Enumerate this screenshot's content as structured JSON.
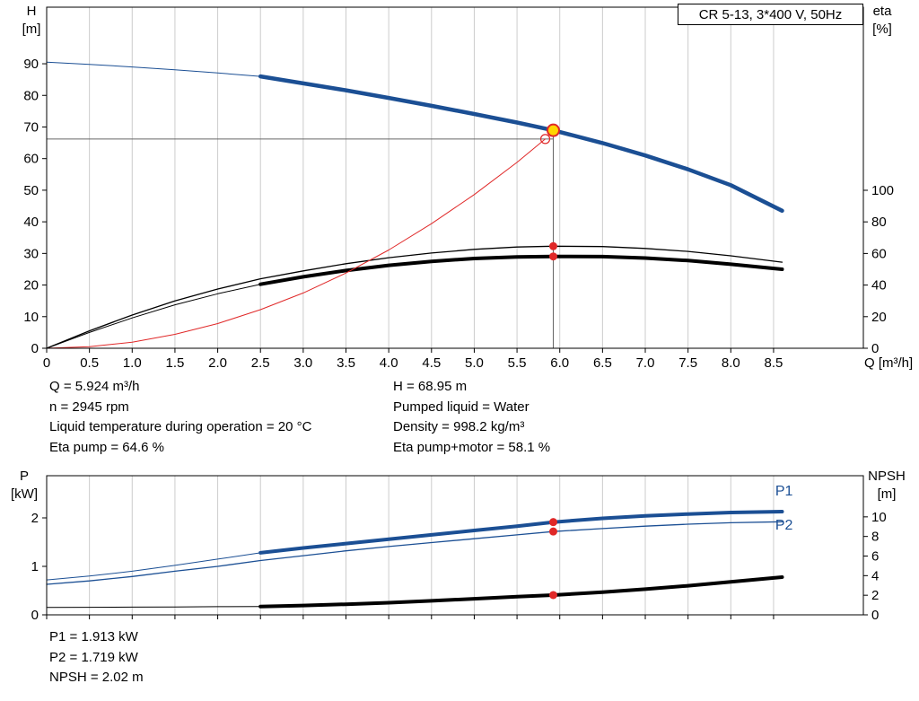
{
  "title_box": {
    "label": "CR 5-13, 3*400 V, 50Hz"
  },
  "axis_labels": {
    "h_1": "H",
    "h_2": "[m]",
    "eta_1": "eta",
    "eta_2": "[%]",
    "q_unit": "Q [m³/h]",
    "p_1": "P",
    "p_2": "[kW]",
    "npsh_1": "NPSH",
    "npsh_2": "[m]"
  },
  "info_top_left": [
    "Q = 5.924 m³/h",
    "n = 2945 rpm",
    "Liquid temperature during operation = 20 °C",
    "Eta pump = 64.6 %"
  ],
  "info_top_right": [
    "H = 68.95 m",
    "Pumped liquid = Water",
    "Density = 998.2 kg/m³",
    "Eta pump+motor = 58.1 %"
  ],
  "info_bottom": [
    "P1 = 1.913 kW",
    "P2 = 1.719 kW",
    "NPSH = 2.02 m"
  ],
  "colors": {
    "curve_blue": "#1b4f94",
    "curve_black": "#000000",
    "curve_red": "#e02828",
    "duty_yellow": "#ffd500",
    "grid": "#cccccc",
    "guide": "#666666"
  },
  "chart_data": [
    {
      "type": "line",
      "name": "qh-eta-chart",
      "title": "CR 5-13, 3*400 V, 50Hz",
      "xlabel": "Q [m³/h]",
      "ylabel_left": "H [m]",
      "ylabel_right": "eta [%]",
      "grid_color": "#cccccc",
      "x": {
        "min": 0,
        "max": 9.55,
        "tick_vals": [
          0,
          0.5,
          1,
          1.5,
          2,
          2.5,
          3,
          3.5,
          4,
          4.5,
          5,
          5.5,
          6,
          6.5,
          7,
          7.5,
          8,
          8.5
        ],
        "tick_labels": [
          "0",
          "0.5",
          "1.0",
          "1.5",
          "2.0",
          "2.5",
          "3.0",
          "3.5",
          "4.0",
          "4.5",
          "5.0",
          "5.5",
          "6.0",
          "6.5",
          "7.0",
          "7.5",
          "8.0",
          "8.5"
        ]
      },
      "y_left": {
        "min": 0,
        "max": 107.9,
        "tick_vals": [
          0,
          10,
          20,
          30,
          40,
          50,
          60,
          70,
          80,
          90
        ],
        "tick_labels": [
          "0",
          "10",
          "20",
          "30",
          "40",
          "50",
          "60",
          "70",
          "80",
          "90"
        ]
      },
      "y_right": {
        "min": 0,
        "max": 215.9,
        "tick_vals": [
          0,
          20,
          40,
          60,
          80,
          100
        ],
        "tick_labels": [
          "0",
          "20",
          "40",
          "60",
          "80",
          "100"
        ]
      },
      "series": [
        {
          "name": "h-curve-thin",
          "axis": "left",
          "color": "#1b4f94",
          "width": 1,
          "points": [
            [
              0,
              90.5
            ],
            [
              0.5,
              89.8
            ],
            [
              1,
              89
            ],
            [
              1.5,
              88.1
            ],
            [
              2,
              87.1
            ],
            [
              2.5,
              86
            ]
          ]
        },
        {
          "name": "h-curve",
          "axis": "left",
          "color": "#1b4f94",
          "width": 4.5,
          "points": [
            [
              2.5,
              86
            ],
            [
              3,
              83.8
            ],
            [
              3.5,
              81.6
            ],
            [
              4,
              79.2
            ],
            [
              4.5,
              76.7
            ],
            [
              5,
              74.1
            ],
            [
              5.5,
              71.4
            ],
            [
              5.924,
              68.95
            ],
            [
              6.5,
              64.9
            ],
            [
              7,
              61
            ],
            [
              7.5,
              56.6
            ],
            [
              8,
              51.6
            ],
            [
              8.6,
              43.5
            ]
          ]
        },
        {
          "name": "eta-pump-curve",
          "axis": "right",
          "color": "#000000",
          "width": 1.3,
          "points": [
            [
              0,
              0
            ],
            [
              0.5,
              11
            ],
            [
              1,
              21
            ],
            [
              1.5,
              30
            ],
            [
              2,
              37.5
            ],
            [
              2.5,
              44
            ],
            [
              3,
              49
            ],
            [
              3.5,
              53.5
            ],
            [
              4,
              57.3
            ],
            [
              4.5,
              60.3
            ],
            [
              5,
              62.6
            ],
            [
              5.5,
              64.1
            ],
            [
              5.924,
              64.6
            ],
            [
              6.5,
              64.4
            ],
            [
              7,
              63.2
            ],
            [
              7.5,
              61.3
            ],
            [
              8,
              58.5
            ],
            [
              8.6,
              54.5
            ]
          ]
        },
        {
          "name": "eta-pump-motor-thin",
          "axis": "right",
          "color": "#000000",
          "width": 1,
          "points": [
            [
              0,
              0
            ],
            [
              0.5,
              10
            ],
            [
              1,
              19.2
            ],
            [
              1.5,
              27.5
            ],
            [
              2,
              34.5
            ],
            [
              2.5,
              40.5
            ]
          ]
        },
        {
          "name": "eta-pump-motor-curve",
          "axis": "right",
          "color": "#000000",
          "width": 4,
          "points": [
            [
              2.5,
              40.5
            ],
            [
              3,
              45.2
            ],
            [
              3.5,
              49.2
            ],
            [
              4,
              52.5
            ],
            [
              4.5,
              55
            ],
            [
              5,
              56.8
            ],
            [
              5.5,
              57.8
            ],
            [
              5.924,
              58.1
            ],
            [
              6.5,
              58
            ],
            [
              7,
              57.1
            ],
            [
              7.5,
              55.5
            ],
            [
              8,
              53.2
            ],
            [
              8.6,
              50
            ]
          ]
        },
        {
          "name": "system-curve",
          "axis": "left",
          "color": "#e02828",
          "width": 1,
          "points": [
            [
              0,
              0
            ],
            [
              0.5,
              0.5
            ],
            [
              1,
              1.9
            ],
            [
              1.5,
              4.4
            ],
            [
              2,
              7.8
            ],
            [
              2.5,
              12.2
            ],
            [
              3,
              17.5
            ],
            [
              3.5,
              23.8
            ],
            [
              4,
              31.1
            ],
            [
              4.5,
              39.4
            ],
            [
              5,
              48.6
            ],
            [
              5.5,
              58.8
            ],
            [
              5.83,
              66.2
            ]
          ]
        }
      ],
      "guides": [
        {
          "name": "head-guide-line",
          "axis": "left",
          "color": "#666666",
          "width": 1,
          "x1": 0,
          "y1": 66.2,
          "x2": 5.924,
          "y2": 66.2
        },
        {
          "name": "flow-guide-line",
          "axis": "left",
          "color": "#666666",
          "width": 1,
          "x1": 5.924,
          "y1": 0,
          "x2": 5.924,
          "y2": 68.95
        }
      ],
      "markers": [
        {
          "name": "requested-duty-marker",
          "axis": "left",
          "x": 5.83,
          "y": 66.2,
          "r": 5,
          "fill": "none",
          "stroke": "#e02828",
          "stroke_width": 1.2
        },
        {
          "name": "duty-point-marker",
          "axis": "left",
          "x": 5.924,
          "y": 68.95,
          "r": 6.5,
          "fill": "#ffd500",
          "stroke": "#e02828",
          "stroke_width": 2
        },
        {
          "name": "eta-pump-marker",
          "axis": "right",
          "x": 5.924,
          "y": 64.6,
          "r": 4.5,
          "fill": "#e02828"
        },
        {
          "name": "eta-pump-motor-marker",
          "axis": "right",
          "x": 5.924,
          "y": 58.1,
          "r": 4.5,
          "fill": "#e02828"
        }
      ],
      "labels": []
    },
    {
      "type": "line",
      "name": "power-npsh-chart",
      "title": "",
      "xlabel": "Q [m³/h]",
      "ylabel_left": "P [kW]",
      "ylabel_right": "NPSH [m]",
      "grid_color": "#cccccc",
      "x": {
        "min": 0,
        "max": 9.55,
        "tick_vals": [
          0,
          0.5,
          1,
          1.5,
          2,
          2.5,
          3,
          3.5,
          4,
          4.5,
          5,
          5.5,
          6,
          6.5,
          7,
          7.5,
          8,
          8.5
        ],
        "tick_labels": []
      },
      "y_left": {
        "min": 0,
        "max": 2.87,
        "tick_vals": [
          0,
          1,
          2
        ],
        "tick_labels": [
          "0",
          "1",
          "2"
        ]
      },
      "y_right": {
        "min": 0,
        "max": 14.2,
        "tick_vals": [
          0,
          2,
          4,
          6,
          8,
          10
        ],
        "tick_labels": [
          "0",
          "2",
          "4",
          "6",
          "8",
          "10"
        ]
      },
      "series": [
        {
          "name": "p1-curve-thin",
          "axis": "left",
          "color": "#1b4f94",
          "width": 1,
          "points": [
            [
              0,
              0.72
            ],
            [
              0.5,
              0.8
            ],
            [
              1,
              0.9
            ],
            [
              1.5,
              1.02
            ],
            [
              2,
              1.15
            ],
            [
              2.5,
              1.28
            ]
          ]
        },
        {
          "name": "p1-curve",
          "axis": "left",
          "color": "#1b4f94",
          "width": 4,
          "points": [
            [
              2.5,
              1.28
            ],
            [
              3,
              1.38
            ],
            [
              3.5,
              1.47
            ],
            [
              4,
              1.56
            ],
            [
              4.5,
              1.65
            ],
            [
              5,
              1.74
            ],
            [
              5.5,
              1.83
            ],
            [
              5.924,
              1.913
            ],
            [
              6.5,
              1.99
            ],
            [
              7,
              2.04
            ],
            [
              7.5,
              2.08
            ],
            [
              8,
              2.11
            ],
            [
              8.6,
              2.13
            ]
          ]
        },
        {
          "name": "p2-curve",
          "axis": "left",
          "color": "#1b4f94",
          "width": 1.3,
          "points": [
            [
              0,
              0.63
            ],
            [
              0.5,
              0.7
            ],
            [
              1,
              0.79
            ],
            [
              1.5,
              0.9
            ],
            [
              2,
              1.0
            ],
            [
              2.5,
              1.12
            ],
            [
              3,
              1.22
            ],
            [
              3.5,
              1.32
            ],
            [
              4,
              1.41
            ],
            [
              4.5,
              1.49
            ],
            [
              5,
              1.57
            ],
            [
              5.5,
              1.65
            ],
            [
              5.924,
              1.719
            ],
            [
              6.5,
              1.78
            ],
            [
              7,
              1.83
            ],
            [
              7.5,
              1.87
            ],
            [
              8,
              1.9
            ],
            [
              8.6,
              1.92
            ]
          ]
        },
        {
          "name": "npsh-curve-thin",
          "axis": "right",
          "color": "#000000",
          "width": 1,
          "points": [
            [
              0,
              0.75
            ],
            [
              0.5,
              0.77
            ],
            [
              1,
              0.79
            ],
            [
              1.5,
              0.81
            ],
            [
              2,
              0.83
            ],
            [
              2.5,
              0.85
            ]
          ]
        },
        {
          "name": "npsh-curve",
          "axis": "right",
          "color": "#000000",
          "width": 4,
          "points": [
            [
              2.5,
              0.85
            ],
            [
              3,
              0.95
            ],
            [
              3.5,
              1.08
            ],
            [
              4,
              1.24
            ],
            [
              4.5,
              1.43
            ],
            [
              5,
              1.64
            ],
            [
              5.5,
              1.85
            ],
            [
              5.924,
              2.02
            ],
            [
              6.5,
              2.32
            ],
            [
              7,
              2.62
            ],
            [
              7.5,
              2.97
            ],
            [
              8,
              3.37
            ],
            [
              8.6,
              3.85
            ]
          ]
        }
      ],
      "guides": [],
      "markers": [
        {
          "name": "p1-marker",
          "axis": "left",
          "x": 5.924,
          "y": 1.913,
          "r": 4.5,
          "fill": "#e02828"
        },
        {
          "name": "p2-marker",
          "axis": "left",
          "x": 5.924,
          "y": 1.719,
          "r": 4.5,
          "fill": "#e02828"
        },
        {
          "name": "npsh-marker",
          "axis": "right",
          "x": 5.924,
          "y": 2.02,
          "r": 4.5,
          "fill": "#e02828"
        }
      ],
      "labels": [
        {
          "text": "P1",
          "x": 8.52,
          "y": 2.46,
          "axis": "left",
          "color": "#1b4f94",
          "name": "p1-curve-label"
        },
        {
          "text": "P2",
          "x": 8.52,
          "y": 1.76,
          "axis": "left",
          "color": "#1b4f94",
          "name": "p2-curve-label"
        }
      ]
    }
  ]
}
